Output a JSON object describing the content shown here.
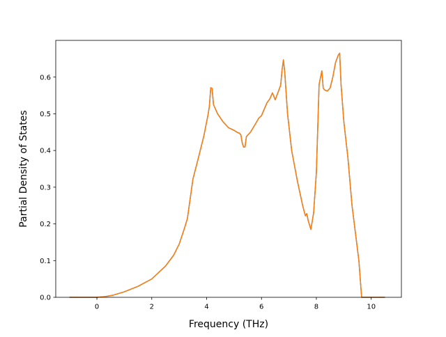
{
  "chart_data": {
    "type": "line",
    "title": "",
    "xlabel": "Frequency (THz)",
    "ylabel": "Partial Density of States",
    "xlim": [
      -1.5,
      11.1
    ],
    "ylim": [
      0.0,
      0.7
    ],
    "x_ticks": [
      0,
      2,
      4,
      6,
      8,
      10
    ],
    "y_ticks": [
      0.0,
      0.1,
      0.2,
      0.3,
      0.4,
      0.5,
      0.6
    ],
    "x_tick_labels": [
      "0",
      "2",
      "4",
      "6",
      "8",
      "10"
    ],
    "y_tick_labels": [
      "0.0",
      "0.1",
      "0.2",
      "0.3",
      "0.4",
      "0.5",
      "0.6"
    ],
    "grid": false,
    "legend": "none",
    "colors": {
      "series_under": "#1f77b4",
      "series_over": "#ff7f0e"
    },
    "series": [
      {
        "x": [
          -1.0,
          0.0,
          0.3,
          0.6,
          1.0,
          1.5,
          2.0,
          2.5,
          2.8,
          3.0,
          3.2,
          3.3,
          3.5,
          3.7,
          3.9,
          4.0,
          4.05,
          4.1,
          4.15,
          4.2,
          4.25,
          4.4,
          4.6,
          4.8,
          5.0,
          5.1,
          5.2,
          5.25,
          5.3,
          5.35,
          5.4,
          5.45,
          5.6,
          5.8,
          5.9,
          6.0,
          6.2,
          6.3,
          6.4,
          6.5,
          6.6,
          6.7,
          6.75,
          6.8,
          6.85,
          6.95,
          7.1,
          7.3,
          7.5,
          7.6,
          7.65,
          7.7,
          7.8,
          7.9,
          8.0,
          8.1,
          8.2,
          8.25,
          8.3,
          8.4,
          8.5,
          8.6,
          8.7,
          8.75,
          8.8,
          8.85,
          8.9,
          9.0,
          9.15,
          9.3,
          9.45,
          9.55,
          9.6,
          9.65,
          10.5
        ],
        "y": [
          0.0,
          0.0,
          0.002,
          0.006,
          0.015,
          0.03,
          0.05,
          0.085,
          0.115,
          0.145,
          0.19,
          0.215,
          0.322,
          0.38,
          0.44,
          0.478,
          0.497,
          0.52,
          0.571,
          0.569,
          0.525,
          0.5,
          0.478,
          0.462,
          0.455,
          0.45,
          0.447,
          0.442,
          0.42,
          0.409,
          0.41,
          0.438,
          0.45,
          0.475,
          0.488,
          0.495,
          0.53,
          0.54,
          0.557,
          0.538,
          0.558,
          0.578,
          0.62,
          0.647,
          0.61,
          0.5,
          0.4,
          0.32,
          0.25,
          0.222,
          0.228,
          0.21,
          0.185,
          0.23,
          0.34,
          0.58,
          0.617,
          0.57,
          0.565,
          0.562,
          0.57,
          0.6,
          0.64,
          0.65,
          0.66,
          0.665,
          0.58,
          0.48,
          0.38,
          0.25,
          0.16,
          0.1,
          0.05,
          0.0,
          0.0
        ]
      }
    ]
  }
}
